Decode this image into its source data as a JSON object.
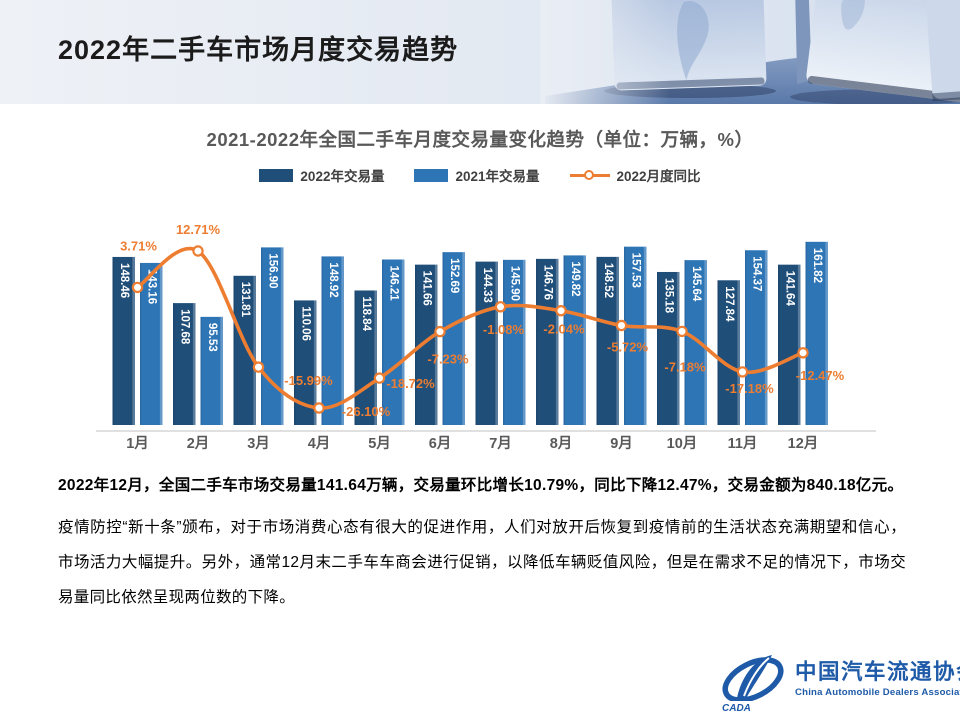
{
  "header": {
    "title": "2022年二手车市场月度交易趋势"
  },
  "chart": {
    "title": "2021-2022年全国二手车月度交易量变化趋势（单位：万辆，%）",
    "legend": [
      {
        "label": "2022年交易量",
        "color": "#1F4E79",
        "type": "bar"
      },
      {
        "label": "2021年交易量",
        "color": "#2E75B6",
        "type": "bar"
      },
      {
        "label": "2022月度同比",
        "color": "#ED7D31",
        "type": "line"
      }
    ]
  },
  "chart_data": {
    "type": "bar",
    "subtype": "grouped-bars-with-line",
    "title": "2021-2022年全国二手车月度交易量变化趋势（单位：万辆，%）",
    "categories": [
      "1月",
      "2月",
      "3月",
      "4月",
      "5月",
      "6月",
      "7月",
      "8月",
      "9月",
      "10月",
      "11月",
      "12月"
    ],
    "series": [
      {
        "name": "2022年交易量",
        "type": "bar",
        "color": "#1F4E79",
        "values": [
          148.46,
          107.68,
          131.81,
          110.06,
          118.84,
          141.66,
          144.33,
          146.76,
          148.52,
          135.18,
          127.84,
          141.64
        ],
        "value_labels": [
          "148.46",
          "107.68",
          "131.81",
          "110.06",
          "118.84",
          "141.66",
          "144.33",
          "146.76",
          "148.52",
          "135.18",
          "127.84",
          "141.64"
        ]
      },
      {
        "name": "2021年交易量",
        "type": "bar",
        "color": "#2E75B6",
        "values": [
          143.16,
          95.53,
          156.9,
          148.92,
          146.21,
          152.69,
          145.9,
          149.82,
          157.53,
          145.64,
          154.37,
          161.82
        ],
        "value_labels": [
          "143.16",
          "95.53",
          "156.90",
          "148.92",
          "146.21",
          "152.69",
          "145.90",
          "149.82",
          "157.53",
          "145.64",
          "154.37",
          "161.82"
        ]
      },
      {
        "name": "2022月度同比",
        "type": "line",
        "color": "#ED7D31",
        "values": [
          3.71,
          12.71,
          -15.99,
          -26.1,
          -18.72,
          -7.23,
          -1.08,
          -2.04,
          -5.72,
          -7.18,
          -17.18,
          -12.47
        ],
        "value_labels": [
          "3.71%",
          "12.71%",
          "-15.99%",
          "-26.10%",
          "-18.72%",
          "-7.23%",
          "-1.08%",
          "-2.04%",
          "-5.72%",
          "-7.18%",
          "-17.18%",
          "-12.47%"
        ]
      }
    ],
    "unit": "万辆，%",
    "grid": false,
    "legend_position": "top"
  },
  "body": {
    "line1": "2022年12月，全国二手车市场交易量141.64万辆，交易量环比增长10.79%，同比下降12.47%，交易金额为840.18亿元。",
    "paragraph": "疫情防控“新十条”颁布，对于市场消费心态有很大的促进作用，人们对放开后恢复到疫情前的生活状态充满期望和信心，市场活力大幅提升。另外，通常12月末二手车车商会进行促销，以降低车辆贬值风险，但是在需求不足的情况下，市场交易量同比依然呈现两位数的下降。"
  },
  "footer": {
    "org_cn": "中国汽车流通协会",
    "org_en": "China Automobile Dealers Association",
    "logo_text": "CADA"
  }
}
